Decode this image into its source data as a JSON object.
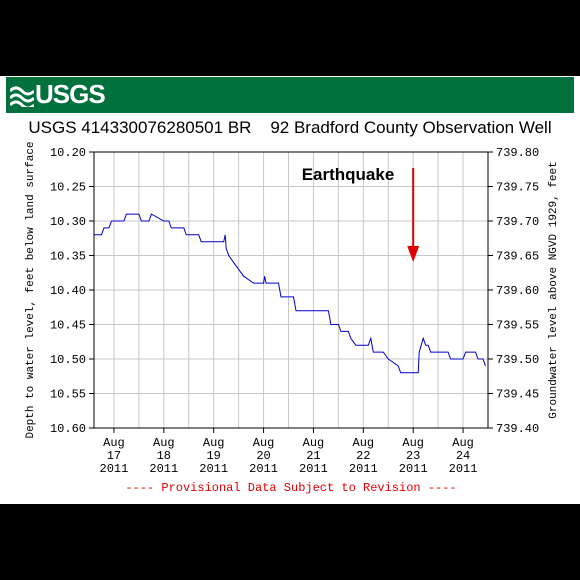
{
  "logo": {
    "text": "USGS"
  },
  "title": "USGS 414330076280501 BR    92 Bradford County Observation Well",
  "footer_note": "---- Provisional Data Subject to Revision ----",
  "annotation": {
    "text": "Earthquake",
    "color": "#e00000"
  },
  "colors": {
    "banner": "#00703c",
    "series": "#0000cc",
    "grid": "#c8c8c8",
    "note": "#e00000"
  },
  "chart_data": {
    "type": "line",
    "y_left_label": "Depth to water level, feet below land surface",
    "y_right_label": "Groundwater level above NGVD 1929, feet",
    "y_left_range": [
      10.2,
      10.6
    ],
    "y_left_inverted": true,
    "y_left_ticks": [
      "10.20",
      "10.25",
      "10.30",
      "10.35",
      "10.40",
      "10.45",
      "10.50",
      "10.55",
      "10.60"
    ],
    "y_right_range": [
      739.4,
      739.8
    ],
    "y_right_ticks": [
      "739.80",
      "739.75",
      "739.70",
      "739.65",
      "739.60",
      "739.55",
      "739.50",
      "739.45",
      "739.40"
    ],
    "x_range": [
      16.6,
      24.5
    ],
    "x_ticks": [
      {
        "x": 17,
        "lines": [
          "Aug",
          "17",
          "2011"
        ]
      },
      {
        "x": 18,
        "lines": [
          "Aug",
          "18",
          "2011"
        ]
      },
      {
        "x": 19,
        "lines": [
          "Aug",
          "19",
          "2011"
        ]
      },
      {
        "x": 20,
        "lines": [
          "Aug",
          "20",
          "2011"
        ]
      },
      {
        "x": 21,
        "lines": [
          "Aug",
          "21",
          "2011"
        ]
      },
      {
        "x": 22,
        "lines": [
          "Aug",
          "22",
          "2011"
        ]
      },
      {
        "x": 23,
        "lines": [
          "Aug",
          "23",
          "2011"
        ]
      },
      {
        "x": 24,
        "lines": [
          "Aug",
          "24",
          "2011"
        ]
      }
    ],
    "grid": true,
    "earthquake_x": 23.0,
    "series": [
      {
        "values": [
          [
            16.6,
            10.32
          ],
          [
            16.75,
            10.32
          ],
          [
            16.8,
            10.31
          ],
          [
            16.9,
            10.31
          ],
          [
            16.95,
            10.3
          ],
          [
            17.2,
            10.3
          ],
          [
            17.25,
            10.29
          ],
          [
            17.5,
            10.29
          ],
          [
            17.55,
            10.3
          ],
          [
            17.7,
            10.3
          ],
          [
            17.75,
            10.29
          ],
          [
            18.0,
            10.3
          ],
          [
            18.1,
            10.3
          ],
          [
            18.15,
            10.31
          ],
          [
            18.4,
            10.31
          ],
          [
            18.45,
            10.32
          ],
          [
            18.7,
            10.32
          ],
          [
            18.75,
            10.33
          ],
          [
            19.2,
            10.33
          ],
          [
            19.23,
            10.32
          ],
          [
            19.25,
            10.34
          ],
          [
            19.3,
            10.35
          ],
          [
            19.4,
            10.36
          ],
          [
            19.5,
            10.37
          ],
          [
            19.6,
            10.38
          ],
          [
            19.8,
            10.39
          ],
          [
            20.0,
            10.39
          ],
          [
            20.02,
            10.38
          ],
          [
            20.05,
            10.39
          ],
          [
            20.3,
            10.39
          ],
          [
            20.35,
            10.41
          ],
          [
            20.6,
            10.41
          ],
          [
            20.65,
            10.43
          ],
          [
            21.3,
            10.43
          ],
          [
            21.35,
            10.45
          ],
          [
            21.5,
            10.45
          ],
          [
            21.55,
            10.46
          ],
          [
            21.7,
            10.46
          ],
          [
            21.75,
            10.47
          ],
          [
            21.85,
            10.48
          ],
          [
            22.1,
            10.48
          ],
          [
            22.15,
            10.47
          ],
          [
            22.2,
            10.49
          ],
          [
            22.4,
            10.49
          ],
          [
            22.5,
            10.5
          ],
          [
            22.7,
            10.51
          ],
          [
            22.75,
            10.52
          ],
          [
            23.1,
            10.52
          ],
          [
            23.12,
            10.49
          ],
          [
            23.2,
            10.47
          ],
          [
            23.25,
            10.48
          ],
          [
            23.3,
            10.48
          ],
          [
            23.35,
            10.49
          ],
          [
            23.7,
            10.49
          ],
          [
            23.75,
            10.5
          ],
          [
            24.0,
            10.5
          ],
          [
            24.05,
            10.49
          ],
          [
            24.25,
            10.49
          ],
          [
            24.3,
            10.5
          ],
          [
            24.4,
            10.5
          ],
          [
            24.45,
            10.51
          ]
        ]
      }
    ]
  }
}
